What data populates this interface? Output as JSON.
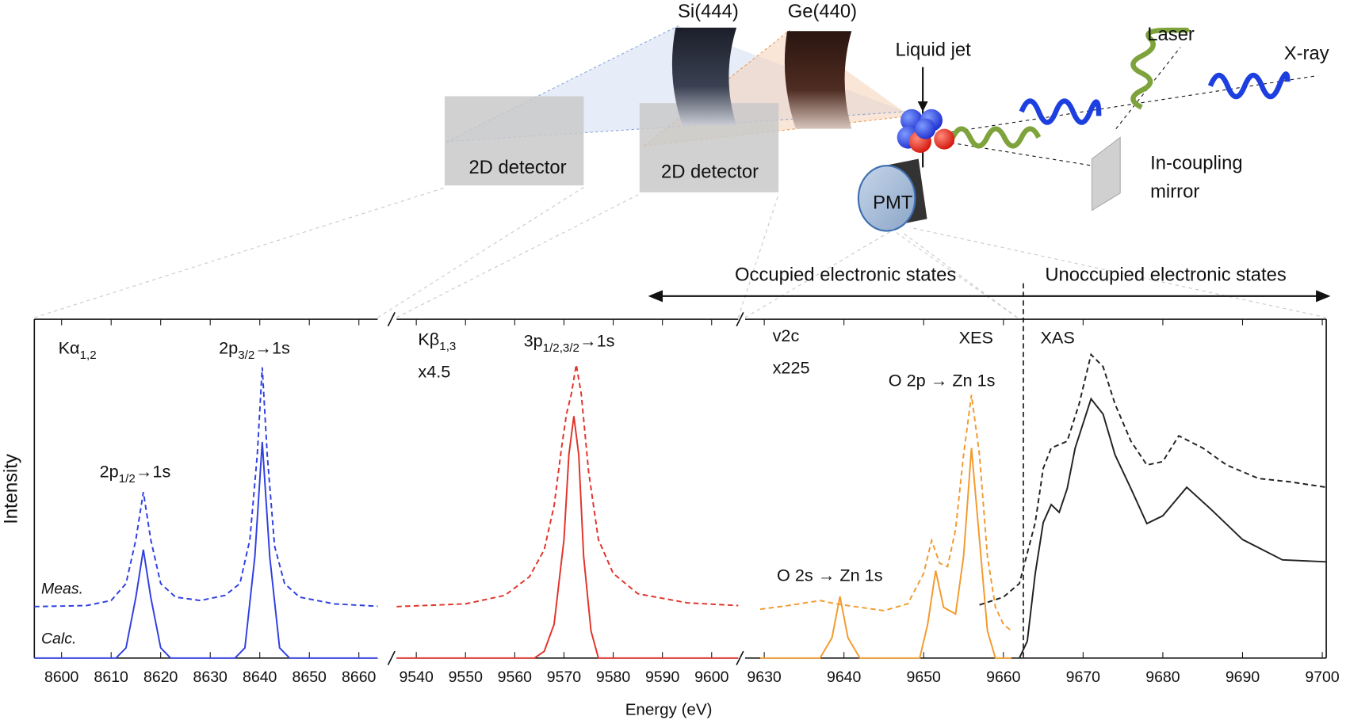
{
  "diagram": {
    "crystal_si": "Si(444)",
    "crystal_ge": "Ge(440)",
    "liquid_jet": "Liquid jet",
    "laser": "Laser",
    "xray": "X-ray",
    "detector_1": "2D detector",
    "detector_2": "2D detector",
    "pmt": "PMT",
    "mirror": [
      "In-coupling",
      "mirror"
    ],
    "occupied": "Occupied electronic states",
    "unoccupied": "Unoccupied electronic states"
  },
  "figure": {
    "xlabel": "Energy (eV)",
    "ylabel": "Intensity"
  },
  "chart_data": [
    {
      "type": "line",
      "xlim": [
        8594.5,
        8663.8
      ],
      "ylim": [
        0,
        100
      ],
      "xticks": [
        8600,
        8610,
        8620,
        8630,
        8640,
        8650,
        8660
      ],
      "annotations": [
        {
          "text": "Kα",
          "sub": "1,2"
        },
        {
          "text": "2p",
          "sub": "3/2",
          "after": "→1s"
        },
        {
          "text": "2p",
          "sub": "1/2",
          "after": "→1s"
        }
      ],
      "series": [
        {
          "name": "Meas.",
          "color": "#2f3fe0",
          "style": "dashed",
          "x": [
            8594.5,
            8605,
            8610,
            8613,
            8615,
            8616.5,
            8618,
            8620,
            8623,
            8628,
            8633,
            8636,
            8638,
            8639.5,
            8640.5,
            8641.5,
            8643,
            8645,
            8648,
            8655,
            8663.8
          ],
          "values": [
            15.2,
            15.5,
            17,
            22,
            35,
            49,
            35,
            22,
            18,
            17,
            18.5,
            22,
            35,
            60,
            85.8,
            60,
            33,
            22,
            18,
            16,
            15.3
          ]
        },
        {
          "name": "Calc.",
          "color": "#2f3fe0",
          "style": "solid",
          "x": [
            8594.5,
            8611,
            8613,
            8615,
            8616.5,
            8618,
            8620,
            8622,
            8635,
            8637,
            8639,
            8640.5,
            8642,
            8644,
            8646,
            8663.8
          ],
          "values": [
            0,
            0,
            3,
            18,
            32,
            18,
            3,
            0,
            0,
            3,
            30,
            63.8,
            30,
            3,
            0,
            0
          ]
        }
      ]
    },
    {
      "type": "line",
      "xlim": [
        9536,
        9605.4
      ],
      "ylim": [
        0,
        100
      ],
      "xticks": [
        9540,
        9550,
        9560,
        9570,
        9580,
        9590,
        9600
      ],
      "annotations": [
        {
          "text": "Kβ",
          "sub": "1,3"
        },
        {
          "text": "x4.5"
        },
        {
          "text": "3p",
          "sub": "1/2,3/2",
          "after": "→1s"
        }
      ],
      "series": [
        {
          "color": "#e0332a",
          "style": "dashed",
          "x": [
            9536,
            9550,
            9558,
            9563,
            9566,
            9568,
            9569.5,
            9570.5,
            9571.5,
            9572.5,
            9573.5,
            9575,
            9577,
            9580,
            9585,
            9595,
            9605.4
          ],
          "values": [
            15.2,
            16,
            18.5,
            24,
            32,
            45,
            62,
            72,
            78,
            86.6,
            78,
            55,
            35,
            25,
            19,
            16.3,
            15.5
          ]
        },
        {
          "color": "#e0332a",
          "style": "solid",
          "x": [
            9536,
            9564,
            9566,
            9568,
            9570,
            9571,
            9572,
            9573,
            9574,
            9575.5,
            9577,
            9605.4
          ],
          "values": [
            0,
            0,
            2,
            10,
            35,
            60,
            71.4,
            60,
            30,
            8,
            0,
            0
          ]
        }
      ]
    },
    {
      "type": "line",
      "xlim": [
        9627.6,
        9700.5
      ],
      "ylim": [
        0,
        100
      ],
      "xticks": [
        9630,
        9640,
        9650,
        9660,
        9670,
        9680,
        9690,
        9700
      ],
      "divider_x": 9662.5,
      "annotations": [
        {
          "text": "v2c"
        },
        {
          "text": "x225"
        },
        {
          "text": "XES"
        },
        {
          "text": "XAS"
        },
        {
          "text": "O 2p → Zn 1s"
        },
        {
          "text": "O 2s → Zn 1s"
        }
      ],
      "series": [
        {
          "color": "#f29a2e",
          "style": "dashed",
          "x": [
            9629.5,
            9633,
            9637,
            9639,
            9642,
            9645,
            9648,
            9650,
            9651,
            9652,
            9653,
            9654,
            9655,
            9656,
            9657,
            9658,
            9659,
            9660,
            9661
          ],
          "values": [
            14.4,
            15.5,
            17,
            16,
            15,
            14,
            16,
            25,
            34.7,
            28,
            27,
            38,
            60,
            77.7,
            60,
            30,
            15,
            10,
            8
          ]
        },
        {
          "color": "#f29a2e",
          "style": "solid",
          "x": [
            9629.5,
            9637,
            9638.5,
            9639.5,
            9640.5,
            9642,
            9649.5,
            9650.5,
            9651.5,
            9652.5,
            9654,
            9655,
            9656,
            9657,
            9658,
            9659,
            9661
          ],
          "values": [
            0,
            0,
            6,
            18.2,
            6,
            0,
            0,
            10,
            25.8,
            15,
            13,
            30,
            62,
            35,
            8,
            0,
            0
          ]
        },
        {
          "color": "#222222",
          "style": "dashed",
          "x": [
            9657,
            9660,
            9662,
            9664,
            9665,
            9666,
            9668,
            9669.5,
            9671,
            9672.5,
            9674,
            9676,
            9678,
            9680,
            9682,
            9685,
            9688,
            9692,
            9696,
            9700.5
          ],
          "values": [
            15.7,
            18,
            22,
            40,
            56,
            62,
            64,
            75,
            89.6,
            86,
            75,
            64,
            57,
            58,
            65.6,
            62,
            57,
            53,
            52,
            50.4
          ]
        },
        {
          "color": "#222222",
          "style": "solid",
          "x": [
            9662,
            9663,
            9664,
            9665,
            9666,
            9667,
            9668,
            9669,
            9671,
            9672.5,
            9674,
            9676,
            9678,
            9680,
            9683,
            9686,
            9690,
            9695,
            9700.5
          ],
          "values": [
            0,
            5,
            25,
            40,
            45.3,
            43,
            50,
            62,
            76.5,
            72,
            60,
            50,
            39.7,
            42,
            50.4,
            44,
            35,
            29,
            28.4
          ]
        }
      ]
    }
  ]
}
